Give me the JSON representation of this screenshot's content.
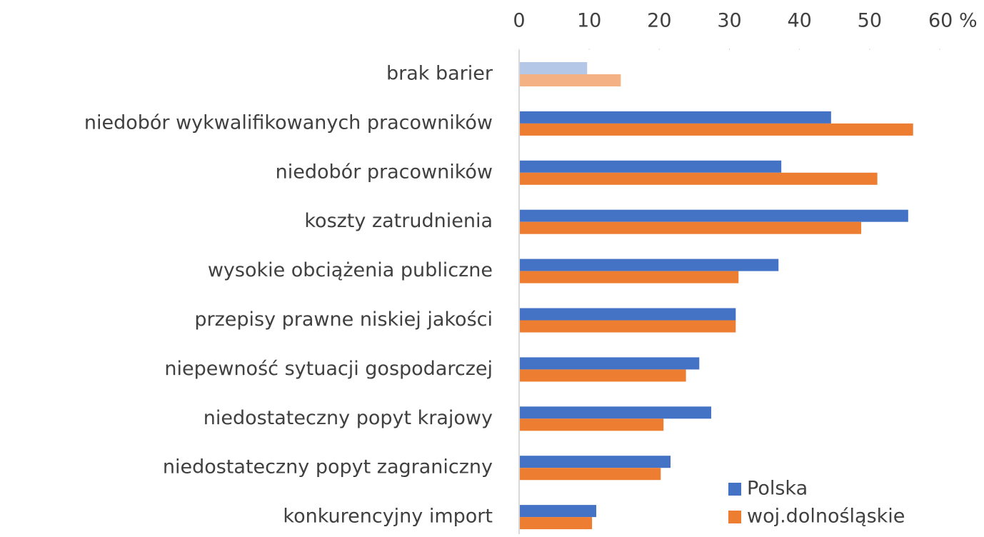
{
  "chart_data": {
    "type": "barh",
    "categories": [
      "brak barier",
      "niedobór wykwalifikowanych pracowników",
      "niedobór pracowników",
      "koszty zatrudnienia",
      "wysokie obciążenia publiczne",
      "przepisy prawne niskiej jakości",
      "niepewność sytuacji gospodarczej",
      "niedostateczny popyt krajowy",
      "niedostateczny popyt zagraniczny",
      "konkurencyjny import"
    ],
    "series": [
      {
        "name": "Polska",
        "color": "#4472c4",
        "colors": [
          "#b4c7e7",
          "#4472c4",
          "#4472c4",
          "#4472c4",
          "#4472c4",
          "#4472c4",
          "#4472c4",
          "#4472c4",
          "#4472c4",
          "#4472c4"
        ],
        "values": [
          9.7,
          44.5,
          37.4,
          55.5,
          37.0,
          30.9,
          25.7,
          27.4,
          21.6,
          11.0
        ]
      },
      {
        "name": "woj.dolnośląskie",
        "color": "#ed7d31",
        "colors": [
          "#f4b183",
          "#ed7d31",
          "#ed7d31",
          "#ed7d31",
          "#ed7d31",
          "#ed7d31",
          "#ed7d31",
          "#ed7d31",
          "#ed7d31",
          "#ed7d31"
        ],
        "values": [
          14.5,
          56.2,
          51.1,
          48.8,
          31.3,
          30.9,
          23.8,
          20.6,
          20.2,
          10.4
        ]
      }
    ],
    "xlim": [
      0,
      60
    ],
    "xticks": [
      0,
      10,
      20,
      30,
      40,
      50,
      {
        "value": 60,
        "label": "60 %"
      }
    ],
    "legend": "bottom-right"
  }
}
